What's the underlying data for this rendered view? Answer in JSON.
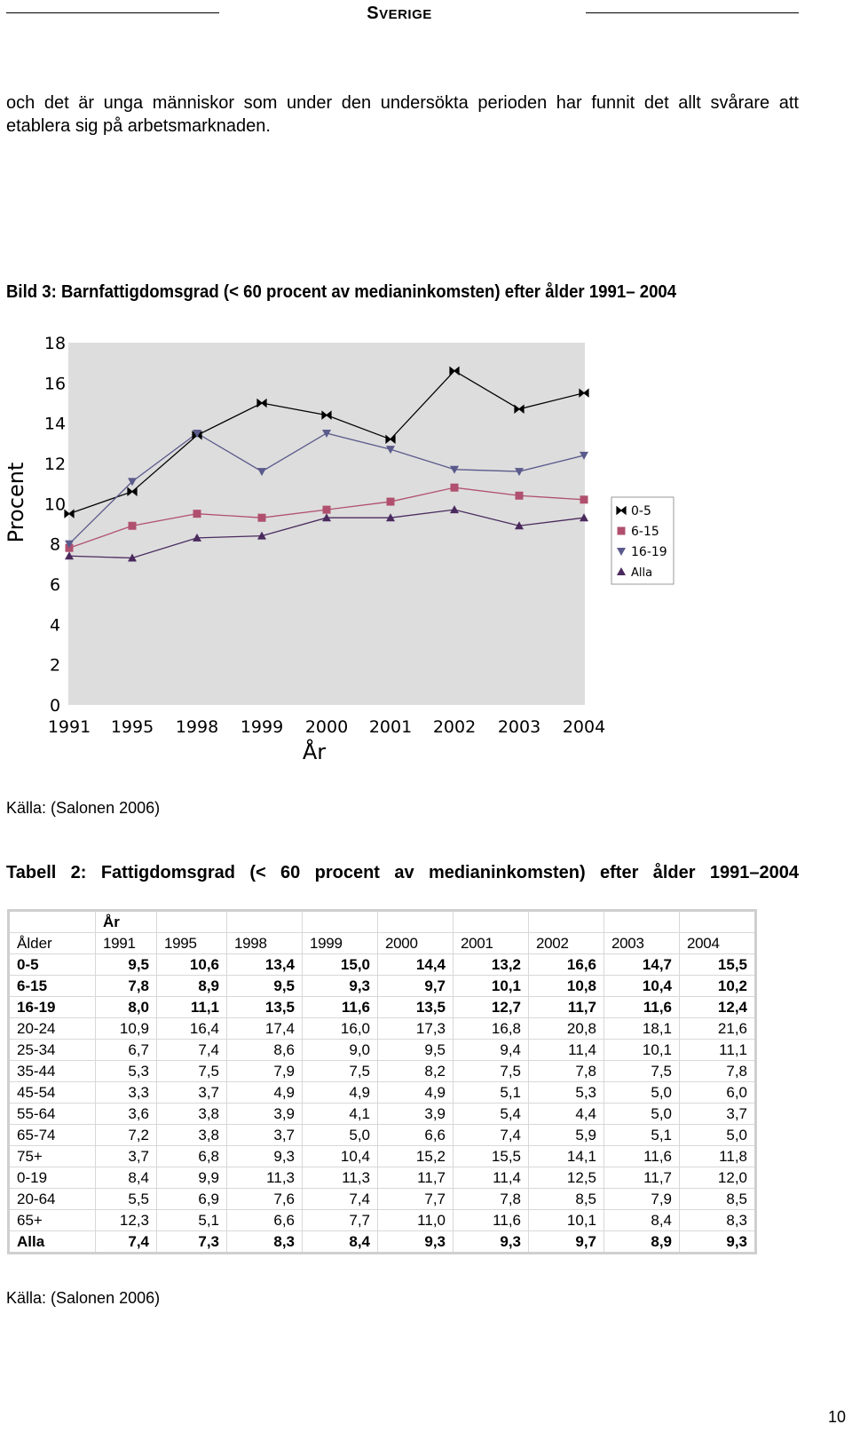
{
  "header": {
    "title_first": "S",
    "title_rest": "VERIGE"
  },
  "intro": "och det är unga människor som under den undersökta perioden har funnit det allt svårare att etablera sig på arbetsmarknaden.",
  "figure": {
    "title": "Bild 3: Barnfattigdomsgrad (< 60 procent av medianinkomsten) efter ålder 1991– 2004",
    "source": "Källa: (Salonen 2006)"
  },
  "chart_data": {
    "type": "line",
    "categories": [
      "1991",
      "1995",
      "1998",
      "1999",
      "2000",
      "2001",
      "2002",
      "2003",
      "2004"
    ],
    "ylim": [
      0,
      18
    ],
    "yticks": [
      "0",
      "2",
      "4",
      "6",
      "8",
      "10",
      "12",
      "14",
      "16",
      "18"
    ],
    "xlabel": "År",
    "ylabel": "Procent",
    "grid": false,
    "legend_position": "right",
    "series": [
      {
        "name": "0-5",
        "marker": "bowtie",
        "color": "#000000",
        "values": [
          9.5,
          10.6,
          13.4,
          15.0,
          14.4,
          13.2,
          16.6,
          14.7,
          15.5
        ]
      },
      {
        "name": "6-15",
        "marker": "square",
        "color": "#b0506e",
        "values": [
          7.8,
          8.9,
          9.5,
          9.3,
          9.7,
          10.1,
          10.8,
          10.4,
          10.2
        ]
      },
      {
        "name": "16-19",
        "marker": "triangle-down",
        "color": "#5a5a8c",
        "values": [
          8.0,
          11.1,
          13.5,
          11.6,
          13.5,
          12.7,
          11.7,
          11.6,
          12.4
        ]
      },
      {
        "name": "Alla",
        "marker": "triangle-up",
        "color": "#4a2a5e",
        "values": [
          7.4,
          7.3,
          8.3,
          8.4,
          9.3,
          9.3,
          9.7,
          8.9,
          9.3
        ]
      }
    ],
    "colors": {
      "plot_bg": "#dddddd",
      "legend_bg": "#ffffff"
    }
  },
  "table": {
    "title_words": [
      "Tabell",
      "2:",
      "Fattigdomsgrad",
      "(<",
      "60",
      "procent",
      "av",
      "medianinkomsten)",
      "efter",
      "ålder",
      "1991–2004"
    ],
    "year_label": "År",
    "row_label_header": "Ålder",
    "years": [
      "1991",
      "1995",
      "1998",
      "1999",
      "2000",
      "2001",
      "2002",
      "2003",
      "2004"
    ],
    "rows": [
      {
        "label": "0-5",
        "bold": true,
        "values": [
          "9,5",
          "10,6",
          "13,4",
          "15,0",
          "14,4",
          "13,2",
          "16,6",
          "14,7",
          "15,5"
        ]
      },
      {
        "label": "6-15",
        "bold": true,
        "values": [
          "7,8",
          "8,9",
          "9,5",
          "9,3",
          "9,7",
          "10,1",
          "10,8",
          "10,4",
          "10,2"
        ]
      },
      {
        "label": "16-19",
        "bold": true,
        "values": [
          "8,0",
          "11,1",
          "13,5",
          "11,6",
          "13,5",
          "12,7",
          "11,7",
          "11,6",
          "12,4"
        ]
      },
      {
        "label": "20-24",
        "bold": false,
        "values": [
          "10,9",
          "16,4",
          "17,4",
          "16,0",
          "17,3",
          "16,8",
          "20,8",
          "18,1",
          "21,6"
        ]
      },
      {
        "label": "25-34",
        "bold": false,
        "values": [
          "6,7",
          "7,4",
          "8,6",
          "9,0",
          "9,5",
          "9,4",
          "11,4",
          "10,1",
          "11,1"
        ]
      },
      {
        "label": "35-44",
        "bold": false,
        "values": [
          "5,3",
          "7,5",
          "7,9",
          "7,5",
          "8,2",
          "7,5",
          "7,8",
          "7,5",
          "7,8"
        ]
      },
      {
        "label": "45-54",
        "bold": false,
        "values": [
          "3,3",
          "3,7",
          "4,9",
          "4,9",
          "4,9",
          "5,1",
          "5,3",
          "5,0",
          "6,0"
        ]
      },
      {
        "label": "55-64",
        "bold": false,
        "values": [
          "3,6",
          "3,8",
          "3,9",
          "4,1",
          "3,9",
          "5,4",
          "4,4",
          "5,0",
          "3,7"
        ]
      },
      {
        "label": "65-74",
        "bold": false,
        "values": [
          "7,2",
          "3,8",
          "3,7",
          "5,0",
          "6,6",
          "7,4",
          "5,9",
          "5,1",
          "5,0"
        ]
      },
      {
        "label": "75+",
        "bold": false,
        "values": [
          "3,7",
          "6,8",
          "9,3",
          "10,4",
          "15,2",
          "15,5",
          "14,1",
          "11,6",
          "11,8"
        ]
      },
      {
        "label": "0-19",
        "bold": false,
        "values": [
          "8,4",
          "9,9",
          "11,3",
          "11,3",
          "11,7",
          "11,4",
          "12,5",
          "11,7",
          "12,0"
        ]
      },
      {
        "label": "20-64",
        "bold": false,
        "values": [
          "5,5",
          "6,9",
          "7,6",
          "7,4",
          "7,7",
          "7,8",
          "8,5",
          "7,9",
          "8,5"
        ]
      },
      {
        "label": "65+",
        "bold": false,
        "values": [
          "12,3",
          "5,1",
          "6,6",
          "7,7",
          "11,0",
          "11,6",
          "10,1",
          "8,4",
          "8,3"
        ]
      },
      {
        "label": "Alla",
        "bold": true,
        "values": [
          "7,4",
          "7,3",
          "8,3",
          "8,4",
          "9,3",
          "9,3",
          "9,7",
          "8,9",
          "9,3"
        ]
      }
    ],
    "source": "Källa: (Salonen 2006)"
  },
  "page_number": "10"
}
